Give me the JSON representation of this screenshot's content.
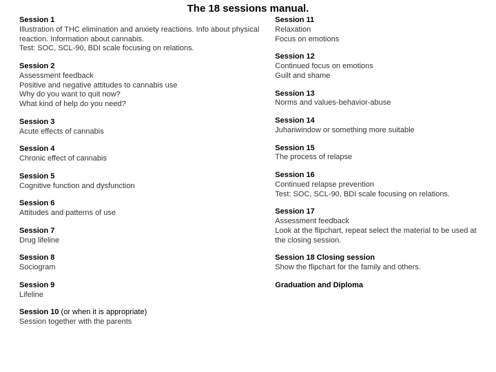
{
  "title": "The 18 sessions manual.",
  "colors": {
    "background": "#ffffff",
    "title_text": "#000000",
    "heading_text": "#000000",
    "body_text": "#333333"
  },
  "typography": {
    "title_fontsize_pt": 15,
    "heading_fontsize_pt": 11,
    "body_fontsize_pt": 11,
    "font_family": "Arial"
  },
  "left": {
    "sessions": [
      {
        "title": "Session  1",
        "lines": [
          "Illustration of THC elimination and  anxiety reactions. Info about physical reaction. Information about cannabis.",
          "Test: SOC, SCL-90, BDI scale focusing on relations."
        ]
      },
      {
        "title": "Session 2",
        "lines": [
          "Assessment feedback",
          "Positive and negative attitudes to cannabis use",
          "Why do you want to quit now?",
          "What kind of help do you need?"
        ]
      },
      {
        "title": "Session 3",
        "lines": [
          "Acute effects of cannabis"
        ]
      },
      {
        "title": "Session 4",
        "lines": [
          "Chronic effect of cannabis"
        ]
      },
      {
        "title": "Session 5",
        "lines": [
          "Cognitive function and dysfunction"
        ]
      },
      {
        "title": "Session 6",
        "lines": [
          "Attitudes and patterns of use"
        ]
      },
      {
        "title": "Session 7",
        "lines": [
          "Drug lifeline"
        ]
      },
      {
        "title": "Session 8",
        "lines": [
          "Sociogram"
        ]
      },
      {
        "title": "Session  9",
        "lines": [
          "Lifeline"
        ]
      },
      {
        "title": "Session 10",
        "title_note": " (or when it is appropriate)",
        "lines": [
          "Session together with the parents"
        ]
      }
    ]
  },
  "right": {
    "sessions": [
      {
        "title": "Session 11",
        "lines": [
          "Relaxation",
          "Focus on emotions"
        ]
      },
      {
        "title": "Session 12",
        "lines": [
          "Continued focus on emotions",
          "Guilt and shame"
        ]
      },
      {
        "title": "Session 13",
        "lines": [
          "Norms and values-behavior-abuse"
        ]
      },
      {
        "title": "Session  14",
        "lines": [
          "Juhariwindow or something more suitable"
        ]
      },
      {
        "title": "Session  15",
        "lines": [
          "The process of relapse"
        ]
      },
      {
        "title": "Session 16",
        "lines": [
          "Continued relapse prevention",
          "Test: SOC, SCL-90, BDI scale focusing on relations."
        ]
      },
      {
        "title": "Session 17",
        "lines": [
          "Assessment feedback",
          "Look at the flipchart, repeat select the material to be used at the closing  session."
        ]
      },
      {
        "title": "Session 18    Closing session",
        "lines": [
          "Show the flipchart for the family and others."
        ]
      },
      {
        "title": "Graduation and Diploma",
        "lines": []
      }
    ]
  }
}
